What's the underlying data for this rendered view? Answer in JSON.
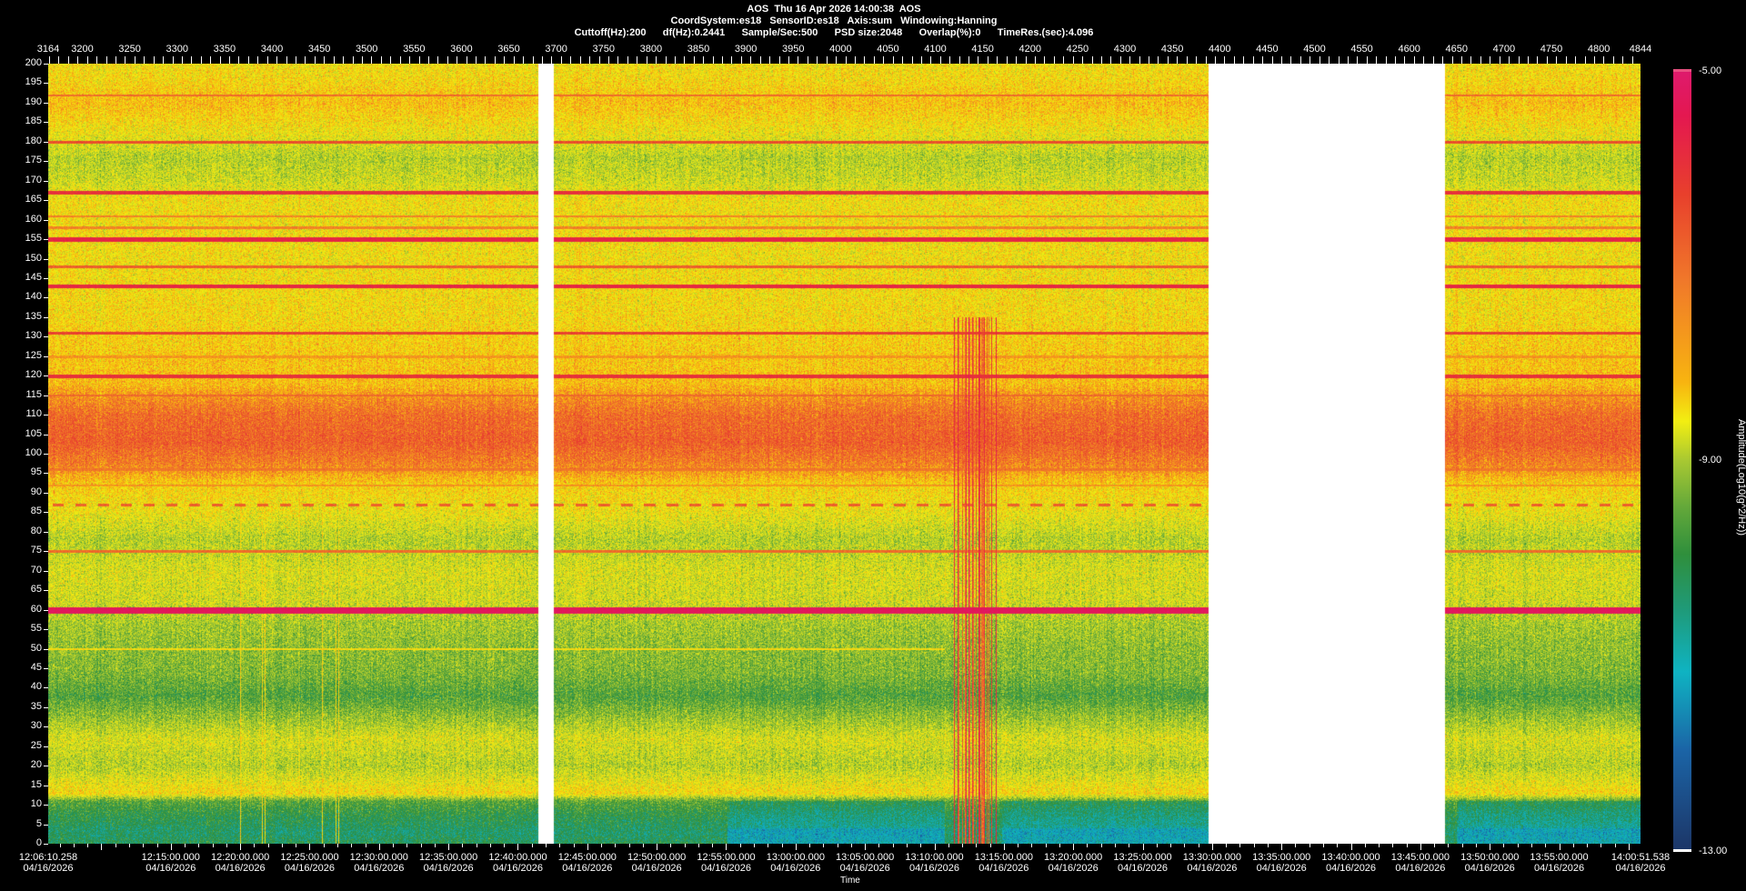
{
  "header": {
    "line1": "AOS  Thu 16 Apr 2026 14:00:38  AOS",
    "line2": "CoordSystem:es18   SensorID:es18   Axis:sum   Windowing:Hanning",
    "line3": "Cuttoff(Hz):200      df(Hz):0.2441      Sample/Sec:500      PSD size:2048      Overlap(%):0      TimeRes.(sec):4.096"
  },
  "chart_data": {
    "type": "heatmap",
    "subtype": "spectrogram",
    "x_frame_range": [
      3164,
      4844
    ],
    "x_frame_ticks": [
      3164,
      3200,
      3250,
      3300,
      3350,
      3400,
      3450,
      3500,
      3550,
      3600,
      3650,
      3700,
      3750,
      3800,
      3850,
      3900,
      3950,
      4000,
      4050,
      4100,
      4150,
      4200,
      4250,
      4300,
      4350,
      4400,
      4450,
      4500,
      4550,
      4600,
      4650,
      4700,
      4750,
      4800,
      4844
    ],
    "xlabel": "Time",
    "time_range": [
      "12:06:10.258",
      "14:00:51.538"
    ],
    "time_ticks": [
      {
        "time": "12:06:10.258",
        "date": "04/16/2026"
      },
      {
        "time": "12:15:00.000",
        "date": "04/16/2026"
      },
      {
        "time": "12:20:00.000",
        "date": "04/16/2026"
      },
      {
        "time": "12:25:00.000",
        "date": "04/16/2026"
      },
      {
        "time": "12:30:00.000",
        "date": "04/16/2026"
      },
      {
        "time": "12:35:00.000",
        "date": "04/16/2026"
      },
      {
        "time": "12:40:00.000",
        "date": "04/16/2026"
      },
      {
        "time": "12:45:00.000",
        "date": "04/16/2026"
      },
      {
        "time": "12:50:00.000",
        "date": "04/16/2026"
      },
      {
        "time": "12:55:00.000",
        "date": "04/16/2026"
      },
      {
        "time": "13:00:00.000",
        "date": "04/16/2026"
      },
      {
        "time": "13:05:00.000",
        "date": "04/16/2026"
      },
      {
        "time": "13:10:00.000",
        "date": "04/16/2026"
      },
      {
        "time": "13:15:00.000",
        "date": "04/16/2026"
      },
      {
        "time": "13:20:00.000",
        "date": "04/16/2026"
      },
      {
        "time": "13:25:00.000",
        "date": "04/16/2026"
      },
      {
        "time": "13:30:00.000",
        "date": "04/16/2026"
      },
      {
        "time": "13:35:00.000",
        "date": "04/16/2026"
      },
      {
        "time": "13:40:00.000",
        "date": "04/16/2026"
      },
      {
        "time": "13:45:00.000",
        "date": "04/16/2026"
      },
      {
        "time": "13:50:00.000",
        "date": "04/16/2026"
      },
      {
        "time": "13:55:00.000",
        "date": "04/16/2026"
      },
      {
        "time": "14:00:51.538",
        "date": "04/16/2026"
      }
    ],
    "ylim": [
      0,
      200
    ],
    "y_ticks": [
      0,
      5,
      10,
      15,
      20,
      25,
      30,
      35,
      40,
      45,
      50,
      55,
      60,
      65,
      70,
      75,
      80,
      85,
      90,
      95,
      100,
      105,
      110,
      115,
      120,
      125,
      130,
      135,
      140,
      145,
      150,
      155,
      160,
      165,
      170,
      175,
      180,
      185,
      190,
      195,
      200
    ],
    "missing_frame_ranges": [
      [
        3681,
        3697
      ],
      [
        4388,
        4637
      ]
    ],
    "tonal_lines_hz": [
      50,
      60,
      75,
      87,
      92,
      115,
      120,
      125,
      131,
      143,
      148,
      155,
      158,
      161,
      167,
      180,
      192
    ],
    "broadband_event_frames": [
      4118,
      4165
    ],
    "colorbar": {
      "label": "Amplitude(Log10(g^2/Hz))",
      "range": [
        -13,
        -5
      ],
      "ticks": [
        "-5.00",
        "-9.00",
        "-13.00"
      ],
      "colors": [
        "#1c3566",
        "#1b64a6",
        "#0fb3c2",
        "#1f9a78",
        "#2f8f3c",
        "#63a83a",
        "#a8c832",
        "#f2ee12",
        "#f8b410",
        "#f0782a",
        "#e8402c",
        "#e41850",
        "#de1a6e"
      ]
    }
  }
}
